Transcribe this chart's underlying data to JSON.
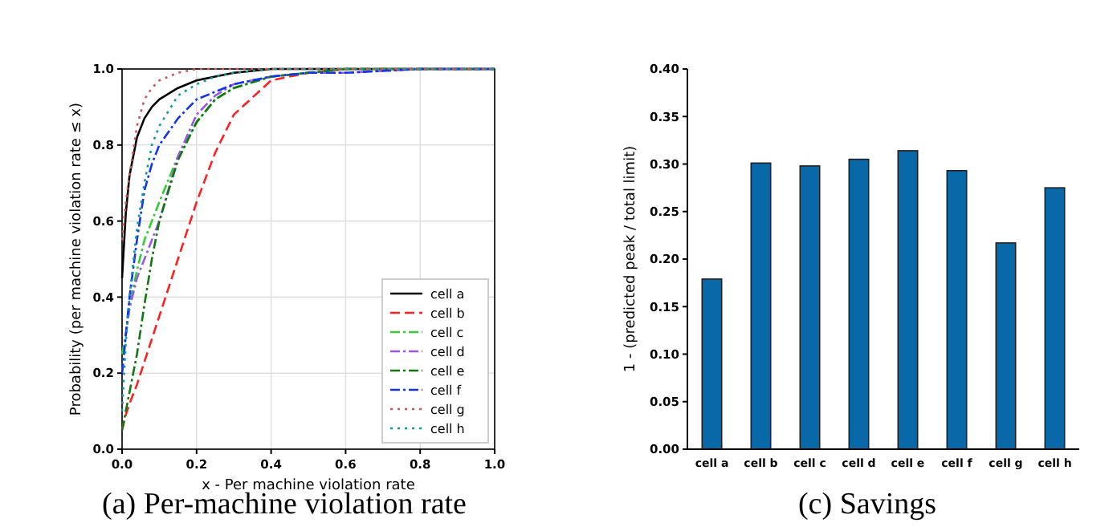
{
  "chart_data": [
    {
      "type": "line",
      "title": "(a) Per-machine violation rate",
      "xlabel": "x - Per machine violation rate",
      "ylabel": "Probability (per machine violation rate  ≤  x)",
      "x": [
        0,
        0.01,
        0.02,
        0.04,
        0.06,
        0.08,
        0.1,
        0.15,
        0.2,
        0.25,
        0.3,
        0.4,
        0.5,
        0.6,
        0.8,
        1.0
      ],
      "xlim": [
        0,
        1
      ],
      "ylim": [
        0,
        1
      ],
      "xticks": [
        {
          "value": 0,
          "label": "0.0"
        },
        0.2,
        0.4,
        0.6,
        0.8,
        {
          "value": 1,
          "label": "1.0"
        }
      ],
      "yticks": [
        {
          "value": 0,
          "label": "0.0"
        },
        0.2,
        0.4,
        0.6,
        0.8,
        {
          "value": 1,
          "label": "1.0"
        }
      ],
      "grid": true,
      "legend": "bottom right",
      "series": [
        {
          "name": "cell a",
          "color": "#000000",
          "line_style": "solid",
          "values": [
            0.45,
            0.62,
            0.72,
            0.82,
            0.87,
            0.9,
            0.92,
            0.95,
            0.97,
            0.98,
            0.99,
            1,
            1,
            1,
            1,
            1
          ]
        },
        {
          "name": "cell b",
          "color": "#ff2020",
          "line_style": "dashed",
          "values": [
            0.05,
            0.09,
            0.12,
            0.17,
            0.23,
            0.29,
            0.35,
            0.5,
            0.65,
            0.78,
            0.88,
            0.97,
            0.99,
            1,
            1,
            1
          ]
        },
        {
          "name": "cell c",
          "color": "#33cc33",
          "line_style": "dashdot",
          "values": [
            0.25,
            0.3,
            0.38,
            0.47,
            0.55,
            0.6,
            0.65,
            0.77,
            0.86,
            0.92,
            0.95,
            0.98,
            0.99,
            1,
            1,
            1
          ]
        },
        {
          "name": "cell d",
          "color": "#9955ee",
          "line_style": "dashdot",
          "values": [
            0.2,
            0.3,
            0.37,
            0.45,
            0.5,
            0.55,
            0.6,
            0.77,
            0.88,
            0.93,
            0.96,
            0.98,
            0.99,
            0.99,
            1,
            1
          ]
        },
        {
          "name": "cell e",
          "color": "#117711",
          "line_style": "dashdot",
          "values": [
            0.05,
            0.1,
            0.15,
            0.25,
            0.38,
            0.5,
            0.6,
            0.76,
            0.86,
            0.92,
            0.95,
            0.98,
            0.99,
            1,
            1,
            1
          ]
        },
        {
          "name": "cell f",
          "color": "#1133ee",
          "line_style": "dashdot",
          "values": [
            0.2,
            0.3,
            0.4,
            0.55,
            0.68,
            0.75,
            0.8,
            0.87,
            0.92,
            0.94,
            0.96,
            0.98,
            0.99,
            0.99,
            1,
            1
          ]
        },
        {
          "name": "cell g",
          "color": "#cc5555",
          "line_style": "dotted",
          "values": [
            0.55,
            0.65,
            0.72,
            0.85,
            0.92,
            0.95,
            0.97,
            0.99,
            1,
            1,
            1,
            1,
            1,
            1,
            1,
            1
          ]
        },
        {
          "name": "cell h",
          "color": "#119999",
          "line_style": "dotted",
          "values": [
            0.1,
            0.28,
            0.4,
            0.58,
            0.7,
            0.8,
            0.85,
            0.93,
            0.96,
            0.98,
            0.99,
            1,
            1,
            1,
            1,
            1
          ]
        }
      ]
    },
    {
      "type": "bar",
      "title": "(c) Savings",
      "ylabel": "1 - (predicted peak / total limit)",
      "categories": [
        "cell a",
        "cell b",
        "cell c",
        "cell d",
        "cell e",
        "cell f",
        "cell g",
        "cell h"
      ],
      "values": [
        0.179,
        0.301,
        0.298,
        0.305,
        0.314,
        0.293,
        0.217,
        0.275
      ],
      "color": "#0868a8",
      "ylim": [
        0,
        0.4
      ],
      "yticks": [
        {
          "value": 0,
          "label": "0.00"
        },
        {
          "value": 0.05,
          "label": "0.05"
        },
        {
          "value": 0.1,
          "label": "0.10"
        },
        {
          "value": 0.15,
          "label": "0.15"
        },
        {
          "value": 0.2,
          "label": "0.20"
        },
        {
          "value": 0.25,
          "label": "0.25"
        },
        {
          "value": 0.3,
          "label": "0.30"
        },
        {
          "value": 0.35,
          "label": "0.35"
        },
        {
          "value": 0.4,
          "label": "0.40"
        }
      ],
      "grid": false
    }
  ]
}
